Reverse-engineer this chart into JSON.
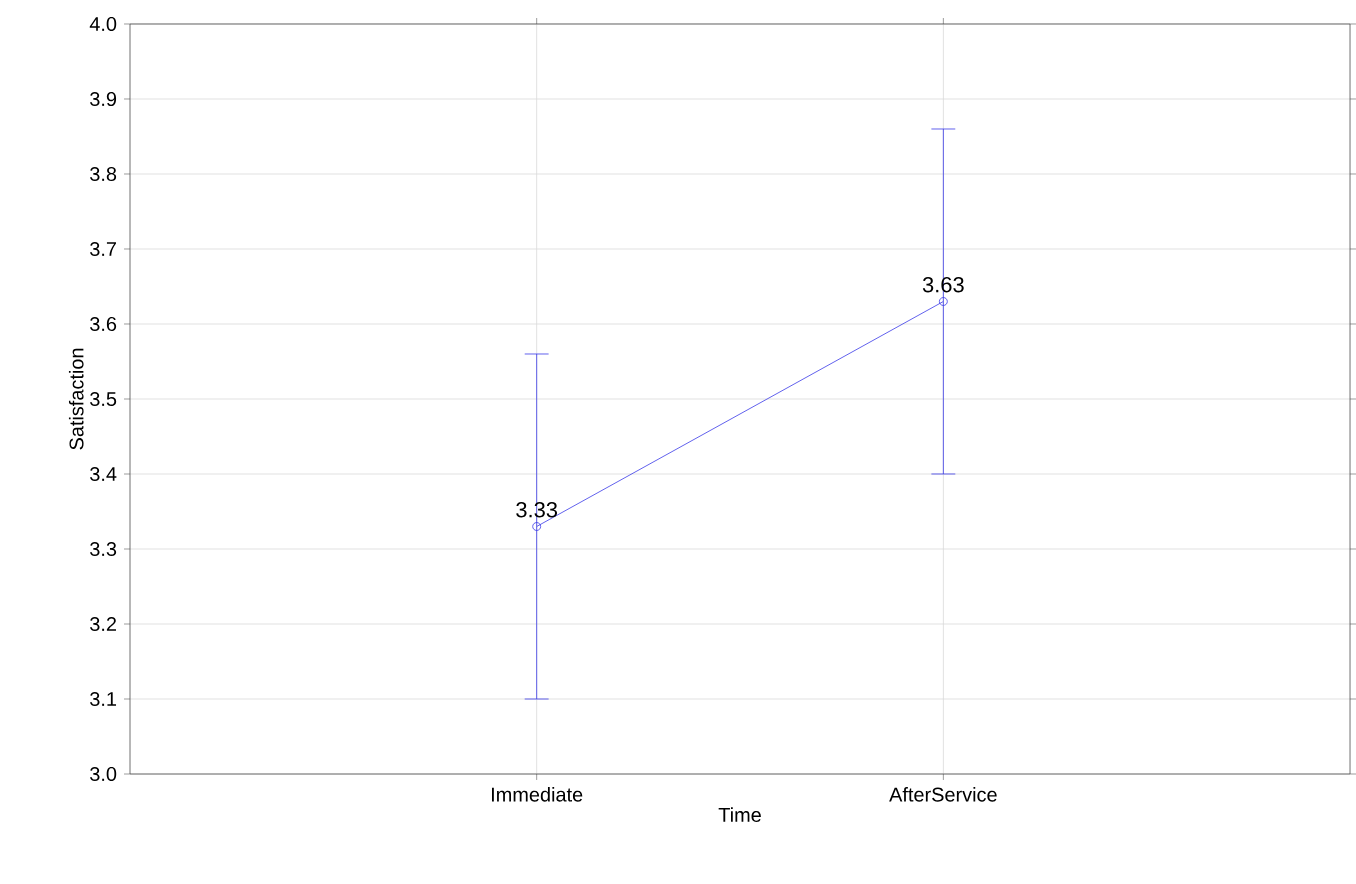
{
  "chart_data": {
    "type": "line",
    "xlabel": "Time",
    "ylabel": "Satisfaction",
    "categories": [
      "Immediate",
      "AfterService"
    ],
    "values": [
      3.33,
      3.63
    ],
    "errors": [
      0.23,
      0.23
    ],
    "color": "#3a3ae8",
    "ylim": [
      3.0,
      4.0
    ],
    "yticks": [
      {
        "value": 3.0,
        "label": "3.0"
      },
      3.1,
      3.2,
      3.3,
      3.4,
      3.5,
      3.6,
      3.7,
      3.8,
      3.9,
      {
        "value": 4.0,
        "label": "4.0"
      }
    ],
    "grid": true,
    "marker": "circle",
    "line_style": "solid",
    "data_labels": true
  }
}
